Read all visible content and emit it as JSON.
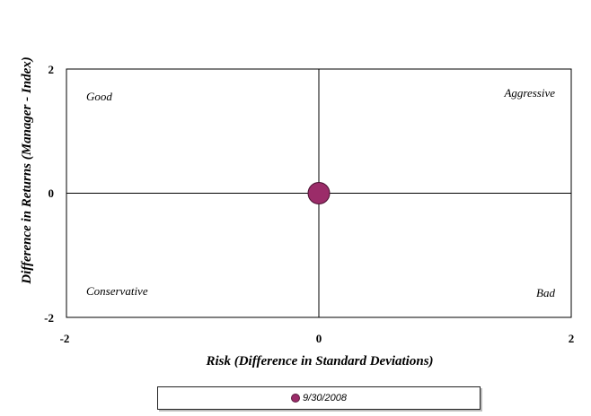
{
  "chart_data": {
    "type": "scatter",
    "xlabel": "Risk (Difference in Standard Deviations)",
    "ylabel": "Difference in Returns (Manager - Index)",
    "xlim": [
      -2,
      2
    ],
    "ylim": [
      -2,
      2
    ],
    "x_ticks": [
      "-2",
      "0",
      "2"
    ],
    "y_ticks": [
      "2",
      "0",
      "-2"
    ],
    "quadrant_labels": {
      "top_left": "Good",
      "top_right": "Aggressive",
      "bottom_left": "Conservative",
      "bottom_right": "Bad"
    },
    "series": [
      {
        "name": "9/30/2008",
        "x": [
          0
        ],
        "y": [
          0
        ],
        "color": "#9b2c69"
      }
    ],
    "legend_position": "bottom",
    "grid": false
  }
}
